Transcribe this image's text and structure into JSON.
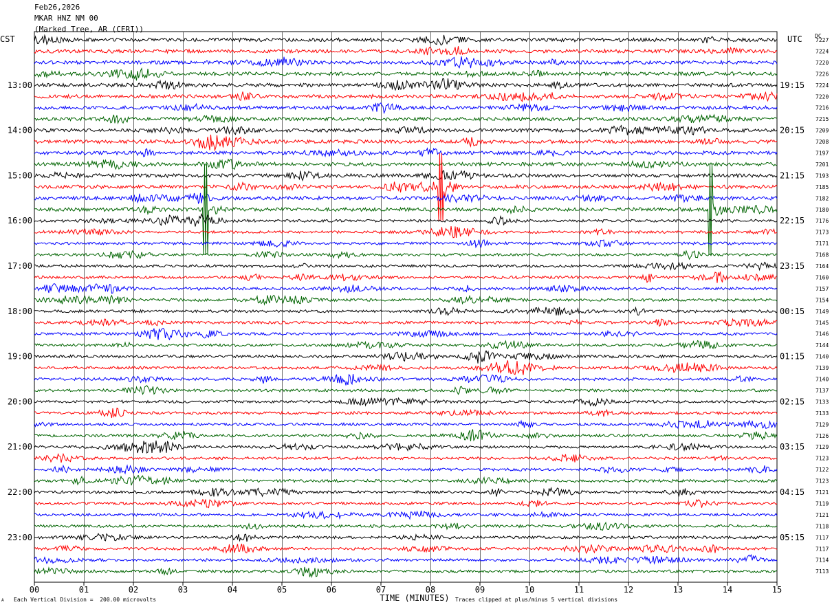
{
  "header": {
    "date": "Feb26,2026",
    "station": "MKAR HNZ NM 00",
    "location": "(Marked Tree, AR (CERI))"
  },
  "left_timezone": "CST",
  "right_timezone": "UTC",
  "dc_label": "DC",
  "xlabel": "TIME (MINUTES)",
  "scale_note": "Each Vertical Division =  200.00 microvolts",
  "clip_note": "Traces clipped at plus/minus 5 vertical divisions",
  "corner_mark": "A",
  "colors": {
    "trace_cycle": [
      "#000000",
      "#ff0000",
      "#0000ff",
      "#006400"
    ],
    "grid": "#6b6b6b"
  },
  "chart_data": {
    "type": "line",
    "title": "MKAR HNZ NM 00",
    "xlabel": "TIME (MINUTES)",
    "xlim": [
      0,
      15
    ],
    "x_ticks": [
      "00",
      "01",
      "02",
      "03",
      "04",
      "05",
      "06",
      "07",
      "08",
      "09",
      "10",
      "11",
      "12",
      "13",
      "14",
      "15"
    ],
    "rows_per_hour": 4,
    "traces": 48,
    "left_hour_labels": [
      "13:00",
      "14:00",
      "15:00",
      "16:00",
      "17:00",
      "18:00",
      "19:00",
      "20:00",
      "21:00",
      "22:00",
      "23:00"
    ],
    "right_hour_labels": [
      "19:15",
      "20:15",
      "21:15",
      "22:15",
      "23:15",
      "00:15",
      "01:15",
      "02:15",
      "03:15",
      "04:15",
      "05:15"
    ],
    "dc_offsets": [
      7227,
      7224,
      7220,
      7226,
      7224,
      7220,
      7216,
      7215,
      7209,
      7208,
      7197,
      7201,
      7193,
      7185,
      7182,
      7180,
      7176,
      7173,
      7171,
      7168,
      7164,
      7160,
      7157,
      7154,
      7149,
      7145,
      7146,
      7144,
      7140,
      7139,
      7140,
      7137,
      7133,
      7133,
      7129,
      7126,
      7129,
      7123,
      7122,
      7123,
      7121,
      7119,
      7121,
      7118,
      7117,
      7117,
      7114,
      7113
    ],
    "events": [
      {
        "row": 13,
        "minute": 8.2,
        "amplitude": 5
      },
      {
        "row": 15,
        "minute": 3.45,
        "amplitude": 5
      },
      {
        "row": 15,
        "minute": 13.65,
        "amplitude": 5
      },
      {
        "row": 21,
        "minute": 12.4,
        "amplitude": 1
      }
    ]
  }
}
